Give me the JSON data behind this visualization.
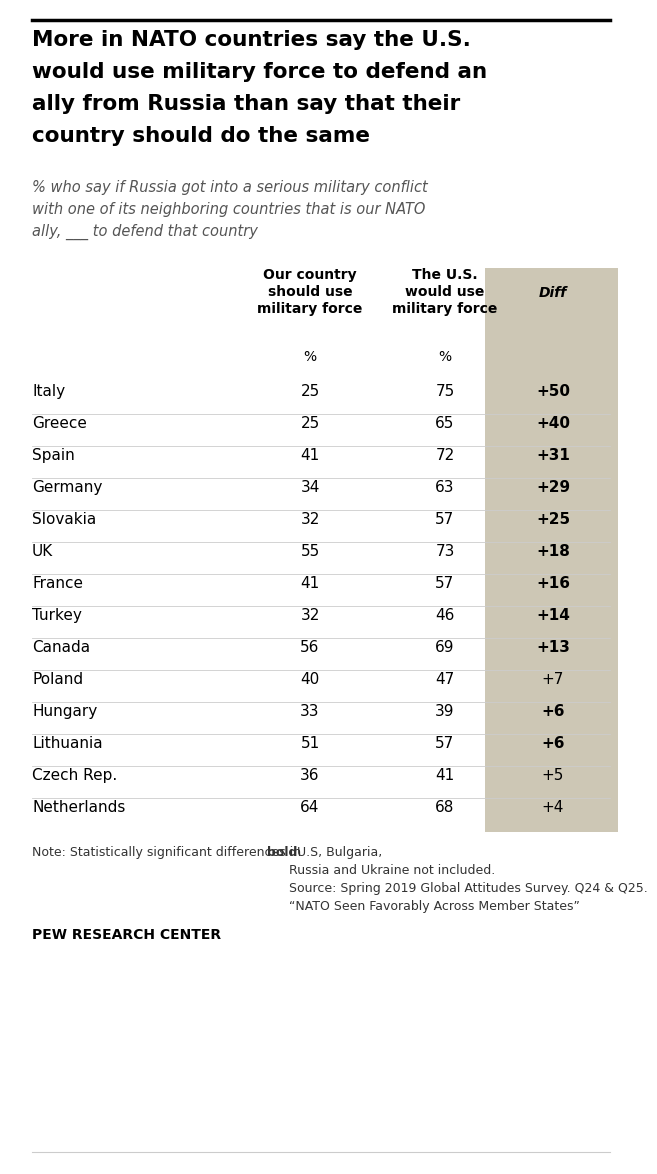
{
  "title_lines": [
    "More in NATO countries say the U.S.",
    "would use military force to defend an",
    "ally from Russia than say that their",
    "country should do the same"
  ],
  "subtitle_lines": [
    "% who say if Russia got into a serious military conflict",
    "with one of its neighboring countries that is our NATO",
    "ally, ___ to defend that country"
  ],
  "col1_header": "Our country\nshould use\nmilitary force",
  "col2_header": "The U.S.\nwould use\nmilitary force",
  "col3_header": "Diff",
  "pct_label": "%",
  "countries": [
    "Italy",
    "Greece",
    "Spain",
    "Germany",
    "Slovakia",
    "UK",
    "France",
    "Turkey",
    "Canada",
    "Poland",
    "Hungary",
    "Lithuania",
    "Czech Rep.",
    "Netherlands"
  ],
  "col1_values": [
    25,
    25,
    41,
    34,
    32,
    55,
    41,
    32,
    56,
    40,
    33,
    51,
    36,
    64
  ],
  "col2_values": [
    75,
    65,
    72,
    63,
    57,
    73,
    57,
    46,
    69,
    47,
    39,
    57,
    41,
    68
  ],
  "diff_values": [
    "+50",
    "+40",
    "+31",
    "+29",
    "+25",
    "+18",
    "+16",
    "+14",
    "+13",
    "+7",
    "+6",
    "+6",
    "+5",
    "+4"
  ],
  "diff_bold": [
    true,
    true,
    true,
    true,
    true,
    true,
    true,
    true,
    true,
    false,
    true,
    true,
    false,
    false
  ],
  "bg_color": "#ffffff",
  "diff_col_bg": "#cdc7b5",
  "title_color": "#000000",
  "subtitle_color": "#555555",
  "note_text1": "Note: Statistically significant differences in ",
  "note_text2": "bold",
  "note_text3": ". U.S, Bulgaria,\nRussia and Ukraine not included.\nSource: Spring 2019 Global Attitudes Survey. Q24 & Q25.\n“NATO Seen Favorably Across Member States”",
  "source_bold": "PEW RESEARCH CENTER",
  "top_line_color": "#000000",
  "row_line_color": "#cccccc"
}
